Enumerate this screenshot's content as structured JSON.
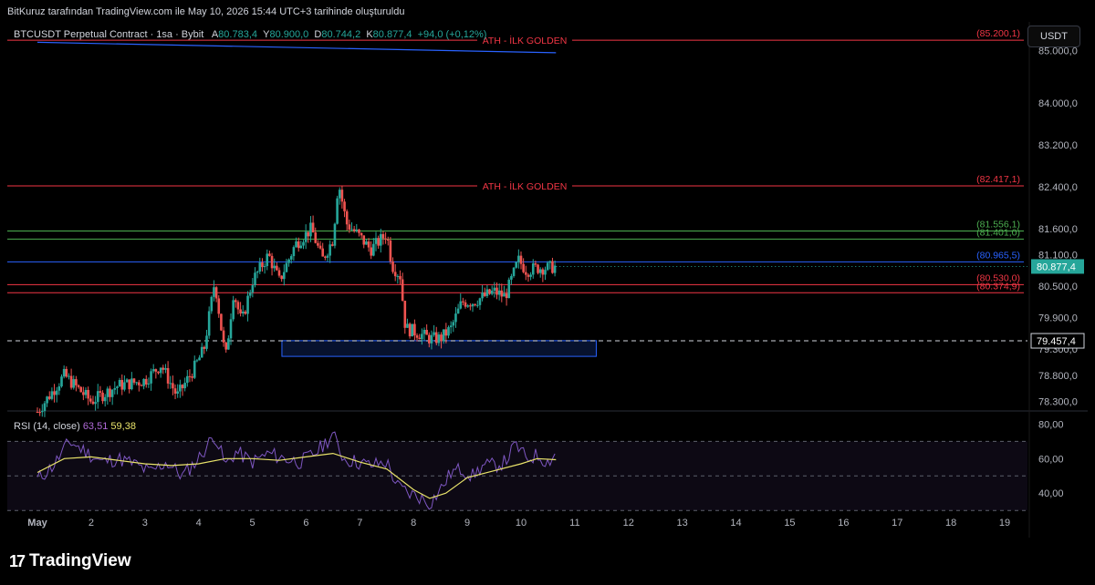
{
  "header": {
    "caption": "BitKuruz tarafından TradingView.com ile May 10, 2026 15:44 UTC+3 tarihinde oluşturuldu"
  },
  "symbol": {
    "name": "BTCUSDT Perpetual Contract · 1sa · Bybit",
    "open_label": "A",
    "open": "80.783,4",
    "high_label": "Y",
    "high": "80.900,0",
    "low_label": "D",
    "low": "80.744,2",
    "close_label": "K",
    "close": "80.877,4",
    "change": "+94,0 (+0,12%)"
  },
  "currency_button": "USDT",
  "rsi": {
    "label": "RSI (14, close)",
    "value": "63,51",
    "ma_value": "59,38"
  },
  "footer": {
    "brand": "TradingView",
    "mark": "17"
  },
  "colors": {
    "background": "#000000",
    "up": "#26a69a",
    "down": "#ef5350",
    "red_line": "#f23645",
    "green_line": "#4caf50",
    "blue_line": "#2962ff",
    "rsi_line": "#7e57c2",
    "rsi_ma": "#e9e36a",
    "box": "#2962ff"
  },
  "chart_data": {
    "type": "candlestick",
    "interval": "1h",
    "price_axis": {
      "ticks": [
        "85.000,0",
        "84.000,0",
        "83.200,0",
        "82.400,0",
        "81.600,0",
        "81.100,0",
        "80.500,0",
        "79.900,0",
        "79.300,0",
        "78.800,0",
        "78.300,0"
      ],
      "tick_values": [
        85000,
        84000,
        83200,
        82400,
        81600,
        81100,
        80500,
        79900,
        79300,
        78800,
        78300
      ],
      "range": [
        78100,
        85550
      ]
    },
    "x_axis": {
      "labels": [
        "May",
        "2",
        "3",
        "4",
        "5",
        "6",
        "7",
        "8",
        "9",
        "10",
        "11",
        "12",
        "13",
        "14",
        "15",
        "16",
        "17",
        "18",
        "19"
      ],
      "day_range": [
        1,
        19
      ]
    },
    "horizontal_levels": [
      {
        "price": 85200.1,
        "label": "(85.200,1)",
        "text": "ATH - İLK GOLDEN",
        "color": "red"
      },
      {
        "price": 82417.1,
        "label": "(82.417,1)",
        "text": "ATH - İLK GOLDEN",
        "color": "red"
      },
      {
        "price": 81556.1,
        "label": "(81.556,1)",
        "text": "",
        "color": "green"
      },
      {
        "price": 81401.0,
        "label": "(81.401,0)",
        "text": "",
        "color": "green"
      },
      {
        "price": 80965.5,
        "label": "(80.965,5)",
        "text": "",
        "color": "blue"
      },
      {
        "price": 80530.0,
        "label": "(80.530,0)",
        "text": "",
        "color": "red"
      },
      {
        "price": 80374.9,
        "label": "(80.374,9)",
        "text": "",
        "color": "red"
      }
    ],
    "last_price": {
      "value": 80877.4,
      "label": "80.877,4"
    },
    "dashed_level": {
      "value": 79457.4,
      "label": "79.457,4"
    },
    "demand_zone": {
      "top": 79460,
      "bottom": 79160,
      "from_day": 5.55,
      "to_day": 11.4
    },
    "trend_line": {
      "from": [
        1.0,
        85160
      ],
      "to": [
        10.65,
        84960
      ]
    },
    "candles_path": [
      [
        1.0,
        78100
      ],
      [
        1.5,
        78800
      ],
      [
        2.0,
        78300
      ],
      [
        2.5,
        78600
      ],
      [
        3.0,
        78700
      ],
      [
        3.3,
        79000
      ],
      [
        3.6,
        78400
      ],
      [
        3.9,
        78900
      ],
      [
        4.1,
        79300
      ],
      [
        4.3,
        80600
      ],
      [
        4.5,
        79100
      ],
      [
        4.65,
        80400
      ],
      [
        4.8,
        79800
      ],
      [
        5.0,
        80600
      ],
      [
        5.3,
        81100
      ],
      [
        5.5,
        80600
      ],
      [
        5.8,
        81300
      ],
      [
        6.1,
        81600
      ],
      [
        6.3,
        81000
      ],
      [
        6.5,
        81400
      ],
      [
        6.6,
        82500
      ],
      [
        6.75,
        81700
      ],
      [
        6.95,
        81500
      ],
      [
        7.2,
        81200
      ],
      [
        7.5,
        81500
      ],
      [
        7.6,
        80900
      ],
      [
        7.75,
        80700
      ],
      [
        7.85,
        79700
      ],
      [
        8.1,
        79600
      ],
      [
        8.3,
        79500
      ],
      [
        8.5,
        79500
      ],
      [
        8.7,
        79700
      ],
      [
        8.9,
        80200
      ],
      [
        9.1,
        80200
      ],
      [
        9.3,
        80300
      ],
      [
        9.5,
        80400
      ],
      [
        9.7,
        80300
      ],
      [
        9.85,
        80700
      ],
      [
        9.95,
        81000
      ],
      [
        10.1,
        80800
      ],
      [
        10.3,
        80850
      ],
      [
        10.5,
        80850
      ],
      [
        10.65,
        80877
      ]
    ],
    "rsi_axis": {
      "ticks": [
        "80,00",
        "60,00",
        "40,00"
      ],
      "tick_values": [
        80,
        60,
        40
      ],
      "range": [
        28,
        86
      ],
      "band": [
        30,
        70
      ]
    },
    "rsi_path": [
      [
        1.0,
        48
      ],
      [
        1.3,
        56
      ],
      [
        1.6,
        70
      ],
      [
        1.9,
        64
      ],
      [
        2.2,
        58
      ],
      [
        2.5,
        60
      ],
      [
        2.8,
        57
      ],
      [
        3.1,
        52
      ],
      [
        3.4,
        58
      ],
      [
        3.7,
        50
      ],
      [
        4.0,
        60
      ],
      [
        4.3,
        74
      ],
      [
        4.5,
        56
      ],
      [
        4.7,
        64
      ],
      [
        5.0,
        58
      ],
      [
        5.3,
        63
      ],
      [
        5.6,
        60
      ],
      [
        5.9,
        58
      ],
      [
        6.2,
        64
      ],
      [
        6.5,
        74
      ],
      [
        6.7,
        60
      ],
      [
        6.95,
        58
      ],
      [
        7.2,
        56
      ],
      [
        7.5,
        58
      ],
      [
        7.7,
        44
      ],
      [
        7.9,
        40
      ],
      [
        8.1,
        38
      ],
      [
        8.3,
        34
      ],
      [
        8.5,
        42
      ],
      [
        8.7,
        52
      ],
      [
        8.9,
        54
      ],
      [
        9.1,
        50
      ],
      [
        9.3,
        56
      ],
      [
        9.5,
        56
      ],
      [
        9.7,
        58
      ],
      [
        9.9,
        68
      ],
      [
        10.1,
        60
      ],
      [
        10.3,
        62
      ],
      [
        10.5,
        58
      ],
      [
        10.65,
        63.51
      ]
    ],
    "rsi_ma_path": [
      [
        1.0,
        52
      ],
      [
        1.5,
        60
      ],
      [
        2.0,
        61
      ],
      [
        2.5,
        59
      ],
      [
        3.0,
        57
      ],
      [
        3.5,
        56
      ],
      [
        4.0,
        57
      ],
      [
        4.5,
        60
      ],
      [
        5.0,
        60
      ],
      [
        5.5,
        59
      ],
      [
        6.0,
        61
      ],
      [
        6.5,
        63
      ],
      [
        7.0,
        58
      ],
      [
        7.5,
        54
      ],
      [
        8.0,
        42
      ],
      [
        8.3,
        37
      ],
      [
        8.6,
        40
      ],
      [
        9.0,
        49
      ],
      [
        9.5,
        53
      ],
      [
        10.0,
        57
      ],
      [
        10.3,
        60
      ],
      [
        10.65,
        59.38
      ]
    ]
  }
}
